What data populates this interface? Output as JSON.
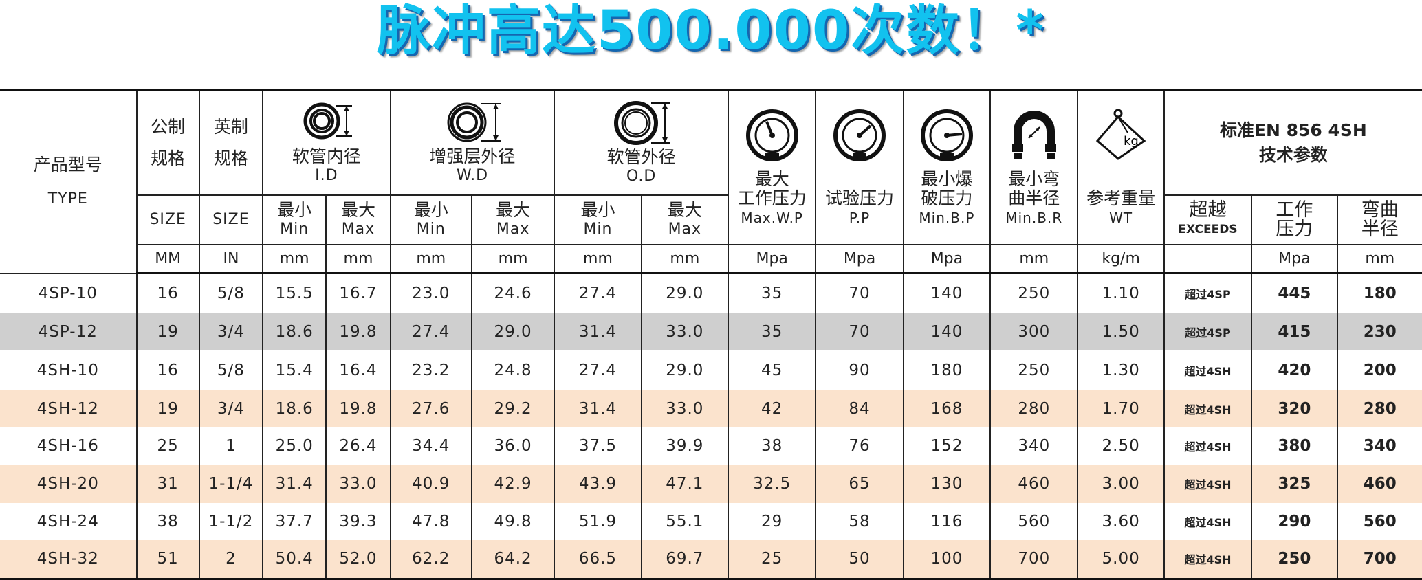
{
  "title": "脉冲高达500.000次数！*",
  "colors": {
    "title": "#12c2ef",
    "title_shadow": "#1566b0",
    "row_gray": "#cfcfcf",
    "row_tan": "#fbe3cd"
  },
  "header": {
    "type": {
      "zh": "产品型号",
      "en": "TYPE"
    },
    "size_mm": {
      "line1": "公制",
      "line2": "规格",
      "sub": "SIZE",
      "unit": "MM"
    },
    "size_in": {
      "line1": "英制",
      "line2": "规格",
      "sub": "SIZE",
      "unit": "IN"
    },
    "id": {
      "icon": "hose-inner-diameter-icon",
      "zh": "软管内径",
      "en": "I.D"
    },
    "wd": {
      "icon": "reinforcement-diameter-icon",
      "zh": "增强层外径",
      "en": "W.D"
    },
    "od": {
      "icon": "hose-outer-diameter-icon",
      "zh": "软管外径",
      "en": "O.D"
    },
    "min": {
      "zh": "最小",
      "en": "Min"
    },
    "max": {
      "zh": "最大",
      "en": "Max"
    },
    "mm": "mm",
    "wp": {
      "icon": "pressure-gauge-icon",
      "zh1": "最大",
      "zh2": "工作压力",
      "en": "Max.W.P",
      "unit": "Mpa"
    },
    "pp": {
      "icon": "pressure-gauge-icon",
      "zh1": "试验压力",
      "en": "P.P",
      "unit": "Mpa"
    },
    "bp": {
      "icon": "pressure-gauge-icon",
      "zh1": "最小爆",
      "zh2": "破压力",
      "en": "Min.B.P",
      "unit": "Mpa"
    },
    "br": {
      "icon": "bend-radius-icon",
      "zh1": "最小弯",
      "zh2": "曲半径",
      "en": "Min.B.R",
      "unit": "mm"
    },
    "wt": {
      "icon": "weight-kg-icon",
      "icon_text": "kg",
      "zh1": "参考重量",
      "en": "WT",
      "unit": "kg/m"
    },
    "std": {
      "line1": "标准EN 856 4SH",
      "line2": "技术参数",
      "exceeds_zh": "超越",
      "exceeds_en": "EXCEEDS",
      "wp_zh1": "工作",
      "wp_zh2": "压力",
      "wp_unit": "Mpa",
      "br_zh1": "弯曲",
      "br_zh2": "半径",
      "br_unit": "mm"
    }
  },
  "rows": [
    {
      "type": "4SP-10",
      "mm": "16",
      "in": "5/8",
      "id_min": "15.5",
      "id_max": "16.7",
      "wd_min": "23.0",
      "wd_max": "24.6",
      "od_min": "27.4",
      "od_max": "29.0",
      "wp": "35",
      "pp": "70",
      "bp": "140",
      "br": "250",
      "wt": "1.10",
      "exceeds": "超过4SP",
      "std_wp": "445",
      "std_br": "180"
    },
    {
      "type": "4SP-12",
      "mm": "19",
      "in": "3/4",
      "id_min": "18.6",
      "id_max": "19.8",
      "wd_min": "27.4",
      "wd_max": "29.0",
      "od_min": "31.4",
      "od_max": "33.0",
      "wp": "35",
      "pp": "70",
      "bp": "140",
      "br": "300",
      "wt": "1.50",
      "exceeds": "超过4SP",
      "std_wp": "415",
      "std_br": "230"
    },
    {
      "type": "4SH-10",
      "mm": "16",
      "in": "5/8",
      "id_min": "15.4",
      "id_max": "16.4",
      "wd_min": "23.2",
      "wd_max": "24.8",
      "od_min": "27.4",
      "od_max": "29.0",
      "wp": "45",
      "pp": "90",
      "bp": "180",
      "br": "250",
      "wt": "1.30",
      "exceeds": "超过4SH",
      "std_wp": "420",
      "std_br": "200"
    },
    {
      "type": "4SH-12",
      "mm": "19",
      "in": "3/4",
      "id_min": "18.6",
      "id_max": "19.8",
      "wd_min": "27.6",
      "wd_max": "29.2",
      "od_min": "31.4",
      "od_max": "33.0",
      "wp": "42",
      "pp": "84",
      "bp": "168",
      "br": "280",
      "wt": "1.70",
      "exceeds": "超过4SH",
      "std_wp": "320",
      "std_br": "280"
    },
    {
      "type": "4SH-16",
      "mm": "25",
      "in": "1",
      "id_min": "25.0",
      "id_max": "26.4",
      "wd_min": "34.4",
      "wd_max": "36.0",
      "od_min": "37.5",
      "od_max": "39.9",
      "wp": "38",
      "pp": "76",
      "bp": "152",
      "br": "340",
      "wt": "2.50",
      "exceeds": "超过4SH",
      "std_wp": "380",
      "std_br": "340"
    },
    {
      "type": "4SH-20",
      "mm": "31",
      "in": "1-1/4",
      "id_min": "31.4",
      "id_max": "33.0",
      "wd_min": "40.9",
      "wd_max": "42.9",
      "od_min": "43.9",
      "od_max": "47.1",
      "wp": "32.5",
      "pp": "65",
      "bp": "130",
      "br": "460",
      "wt": "3.00",
      "exceeds": "超过4SH",
      "std_wp": "325",
      "std_br": "460"
    },
    {
      "type": "4SH-24",
      "mm": "38",
      "in": "1-1/2",
      "id_min": "37.7",
      "id_max": "39.3",
      "wd_min": "47.8",
      "wd_max": "49.8",
      "od_min": "51.9",
      "od_max": "55.1",
      "wp": "29",
      "pp": "58",
      "bp": "116",
      "br": "560",
      "wt": "3.60",
      "exceeds": "超过4SH",
      "std_wp": "290",
      "std_br": "560"
    },
    {
      "type": "4SH-32",
      "mm": "51",
      "in": "2",
      "id_min": "50.4",
      "id_max": "52.0",
      "wd_min": "62.2",
      "wd_max": "64.2",
      "od_min": "66.5",
      "od_max": "69.7",
      "wp": "25",
      "pp": "50",
      "bp": "100",
      "br": "700",
      "wt": "5.00",
      "exceeds": "超过4SH",
      "std_wp": "250",
      "std_br": "700"
    }
  ]
}
